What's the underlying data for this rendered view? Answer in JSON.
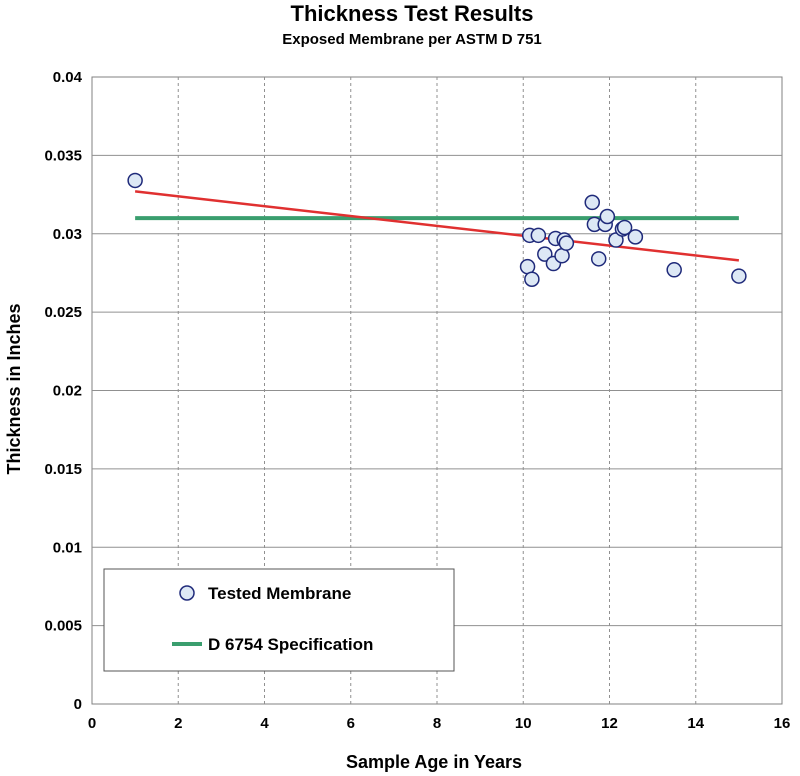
{
  "chart_data": {
    "type": "scatter",
    "title": "Thickness Test Results",
    "subtitle": "Exposed Membrane per ASTM D 751",
    "xlabel": "Sample Age in Years",
    "ylabel": "Thickness in Inches",
    "xlim": [
      0,
      16
    ],
    "ylim": [
      0,
      0.04
    ],
    "x_ticks": [
      0,
      2,
      4,
      6,
      8,
      10,
      12,
      14,
      16
    ],
    "x_tick_labels": [
      "0",
      "2",
      "4",
      "6",
      "8",
      "10",
      "12",
      "14",
      "16"
    ],
    "y_ticks": [
      0,
      0.005,
      0.01,
      0.015,
      0.02,
      0.025,
      0.03,
      0.035,
      0.04
    ],
    "y_tick_labels": [
      "0",
      "0.005",
      "0.01",
      "0.015",
      "0.02",
      "0.025",
      "0.03",
      "0.035",
      "0.04"
    ],
    "grid": {
      "x": "dashed",
      "y": "solid"
    },
    "legend_placement": "bottom-left",
    "series": [
      {
        "name": "Tested Membrane",
        "kind": "points",
        "color": "#1f2a7a",
        "fill": "#dde8f5",
        "points": [
          {
            "x": 1.0,
            "y": 0.0334
          },
          {
            "x": 10.1,
            "y": 0.0279
          },
          {
            "x": 10.15,
            "y": 0.0299
          },
          {
            "x": 10.2,
            "y": 0.0271
          },
          {
            "x": 10.35,
            "y": 0.0299
          },
          {
            "x": 10.5,
            "y": 0.0287
          },
          {
            "x": 10.7,
            "y": 0.0281
          },
          {
            "x": 10.75,
            "y": 0.0297
          },
          {
            "x": 10.9,
            "y": 0.0286
          },
          {
            "x": 10.95,
            "y": 0.0296
          },
          {
            "x": 11.0,
            "y": 0.0294
          },
          {
            "x": 11.6,
            "y": 0.032
          },
          {
            "x": 11.65,
            "y": 0.0306
          },
          {
            "x": 11.75,
            "y": 0.0284
          },
          {
            "x": 11.9,
            "y": 0.0306
          },
          {
            "x": 11.95,
            "y": 0.0311
          },
          {
            "x": 12.15,
            "y": 0.0296
          },
          {
            "x": 12.3,
            "y": 0.0303
          },
          {
            "x": 12.35,
            "y": 0.0304
          },
          {
            "x": 12.6,
            "y": 0.0298
          },
          {
            "x": 13.5,
            "y": 0.0277
          },
          {
            "x": 15.0,
            "y": 0.0273
          }
        ]
      },
      {
        "name": "D 6754 Specification",
        "kind": "line",
        "color": "#3a9e6e",
        "points": [
          {
            "x": 1.0,
            "y": 0.031
          },
          {
            "x": 15.0,
            "y": 0.031
          }
        ]
      },
      {
        "kind": "trendline",
        "color": "#e03030",
        "points": [
          {
            "x": 1.0,
            "y": 0.0327
          },
          {
            "x": 15.0,
            "y": 0.0283
          }
        ]
      }
    ]
  }
}
